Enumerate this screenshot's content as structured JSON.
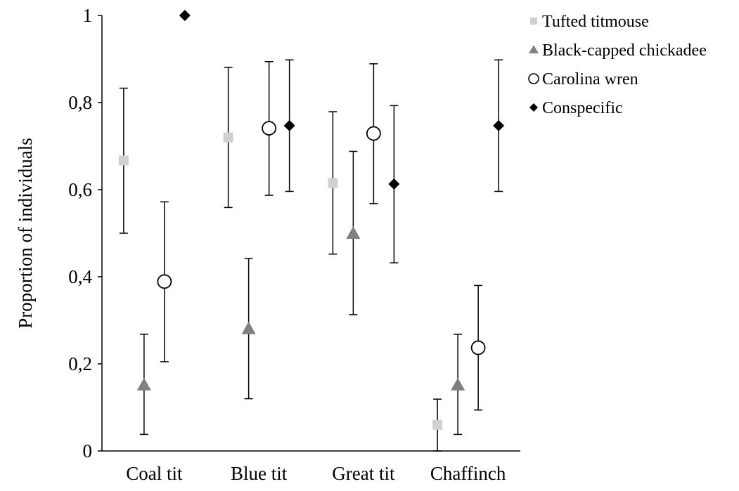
{
  "chart_data": {
    "type": "scatter",
    "title": "",
    "xlabel": "",
    "ylabel": "Proportion of individuals",
    "ylim": [
      0,
      1
    ],
    "yticks": [
      {
        "value": 0,
        "label": "0"
      },
      {
        "value": 0.2,
        "label": "0,2"
      },
      {
        "value": 0.4,
        "label": "0,4"
      },
      {
        "value": 0.6,
        "label": "0,6"
      },
      {
        "value": 0.8,
        "label": "0,8"
      },
      {
        "value": 1,
        "label": "1"
      }
    ],
    "categories": [
      "Coal tit",
      "Blue tit",
      "Great tit",
      "Chaffinch"
    ],
    "grid": false,
    "legend_position": "top-right",
    "series": [
      {
        "name": "Tufted titmouse",
        "marker": "square",
        "color": "#d0d0d0",
        "values": [
          0.667,
          0.72,
          0.615,
          0.06
        ],
        "err_low": [
          0.5,
          0.559,
          0.452,
          0.0
        ],
        "err_high": [
          0.833,
          0.881,
          0.779,
          0.119
        ]
      },
      {
        "name": "Black-capped chickadee",
        "marker": "triangle",
        "color": "#808080",
        "values": [
          0.152,
          0.281,
          0.5,
          0.152
        ],
        "err_low": [
          0.038,
          0.12,
          0.313,
          0.038
        ],
        "err_high": [
          0.268,
          0.442,
          0.688,
          0.268
        ]
      },
      {
        "name": "Carolina wren",
        "marker": "circle-open",
        "color": "#000000",
        "values": [
          0.389,
          0.741,
          0.729,
          0.237
        ],
        "err_low": [
          0.205,
          0.587,
          0.568,
          0.094
        ],
        "err_high": [
          0.572,
          0.894,
          0.889,
          0.38
        ]
      },
      {
        "name": "Conspecific",
        "marker": "diamond",
        "color": "#000000",
        "values": [
          1.0,
          0.747,
          0.613,
          0.747
        ],
        "err_low": [
          null,
          0.596,
          0.432,
          0.596
        ],
        "err_high": [
          null,
          0.898,
          0.793,
          0.898
        ]
      }
    ]
  }
}
